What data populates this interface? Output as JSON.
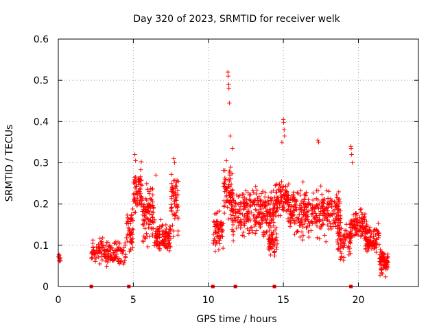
{
  "chart_data": {
    "type": "scatter",
    "title": "Day 320 of 2023, SRMTID for receiver welk",
    "xlabel": "GPS time / hours",
    "ylabel": "SRMTID / TECUs",
    "xlim": [
      0,
      24
    ],
    "ylim": [
      0,
      0.6
    ],
    "xticks": [
      0,
      5,
      10,
      15,
      20
    ],
    "xtick_labels": [
      "0",
      "5",
      "10",
      "15",
      "20"
    ],
    "yticks": [
      0,
      0.1,
      0.2,
      0.3,
      0.4,
      0.5,
      0.6
    ],
    "ytick_labels": [
      "0",
      "0.1",
      "0.2",
      "0.3",
      "0.4",
      "0.5",
      "0.6"
    ],
    "grid": true,
    "marker": "+",
    "color": "#ff0000",
    "gap_markers_x": [
      2.2,
      4.7,
      10.3,
      11.8,
      14.4,
      19.5
    ],
    "clusters": [
      {
        "name": "c1",
        "x": [
          0.0,
          0.15
        ],
        "y": [
          0.05,
          0.09
        ],
        "n": 12
      },
      {
        "name": "c2",
        "x": [
          2.2,
          3.2
        ],
        "y": [
          0.04,
          0.13
        ],
        "n": 70
      },
      {
        "name": "c3",
        "x": [
          3.2,
          4.5
        ],
        "y": [
          0.04,
          0.12
        ],
        "n": 90
      },
      {
        "name": "c4",
        "x": [
          4.5,
          5.0
        ],
        "y": [
          0.07,
          0.2
        ],
        "n": 50
      },
      {
        "name": "c5",
        "x": [
          5.0,
          5.6
        ],
        "y": [
          0.15,
          0.32
        ],
        "n": 70
      },
      {
        "name": "c6",
        "x": [
          5.6,
          6.4
        ],
        "y": [
          0.08,
          0.27
        ],
        "n": 90
      },
      {
        "name": "c7",
        "x": [
          6.4,
          7.5
        ],
        "y": [
          0.07,
          0.17
        ],
        "n": 110
      },
      {
        "name": "c8",
        "x": [
          7.5,
          8.0
        ],
        "y": [
          0.1,
          0.3
        ],
        "n": 60
      },
      {
        "name": "c9",
        "x": [
          10.3,
          11.0
        ],
        "y": [
          0.07,
          0.2
        ],
        "n": 70
      },
      {
        "name": "c10",
        "x": [
          11.0,
          11.6
        ],
        "y": [
          0.15,
          0.32
        ],
        "n": 70
      },
      {
        "name": "c11",
        "x": [
          11.5,
          14.5
        ],
        "y": [
          0.1,
          0.26
        ],
        "n": 280
      },
      {
        "name": "c12",
        "x": [
          14.0,
          14.6
        ],
        "y": [
          0.06,
          0.15
        ],
        "n": 50
      },
      {
        "name": "c13",
        "x": [
          14.5,
          15.4
        ],
        "y": [
          0.15,
          0.28
        ],
        "n": 90
      },
      {
        "name": "c14",
        "x": [
          15.3,
          18.8
        ],
        "y": [
          0.1,
          0.26
        ],
        "n": 320
      },
      {
        "name": "c15",
        "x": [
          18.6,
          19.5
        ],
        "y": [
          0.05,
          0.17
        ],
        "n": 70
      },
      {
        "name": "c16",
        "x": [
          19.4,
          20.6
        ],
        "y": [
          0.1,
          0.2
        ],
        "n": 110
      },
      {
        "name": "c17",
        "x": [
          20.4,
          21.4
        ],
        "y": [
          0.07,
          0.16
        ],
        "n": 100
      },
      {
        "name": "c18",
        "x": [
          21.4,
          22.0
        ],
        "y": [
          0.02,
          0.1
        ],
        "n": 80
      }
    ],
    "peaks": [
      {
        "x": 11.3,
        "y": 0.52
      },
      {
        "x": 11.32,
        "y": 0.51
      },
      {
        "x": 11.35,
        "y": 0.49
      },
      {
        "x": 11.37,
        "y": 0.48
      },
      {
        "x": 11.4,
        "y": 0.445
      },
      {
        "x": 11.45,
        "y": 0.365
      },
      {
        "x": 11.6,
        "y": 0.335
      },
      {
        "x": 11.2,
        "y": 0.305
      },
      {
        "x": 15.0,
        "y": 0.405
      },
      {
        "x": 15.02,
        "y": 0.398
      },
      {
        "x": 15.05,
        "y": 0.38
      },
      {
        "x": 15.08,
        "y": 0.365
      },
      {
        "x": 14.9,
        "y": 0.35
      },
      {
        "x": 17.3,
        "y": 0.355
      },
      {
        "x": 17.35,
        "y": 0.35
      },
      {
        "x": 19.5,
        "y": 0.34
      },
      {
        "x": 19.52,
        "y": 0.335
      },
      {
        "x": 19.55,
        "y": 0.32
      },
      {
        "x": 19.6,
        "y": 0.3
      },
      {
        "x": 5.1,
        "y": 0.32
      },
      {
        "x": 5.15,
        "y": 0.305
      },
      {
        "x": 7.7,
        "y": 0.31
      },
      {
        "x": 7.75,
        "y": 0.3
      },
      {
        "x": 8.0,
        "y": 0.255
      },
      {
        "x": 6.5,
        "y": 0.27
      }
    ]
  }
}
